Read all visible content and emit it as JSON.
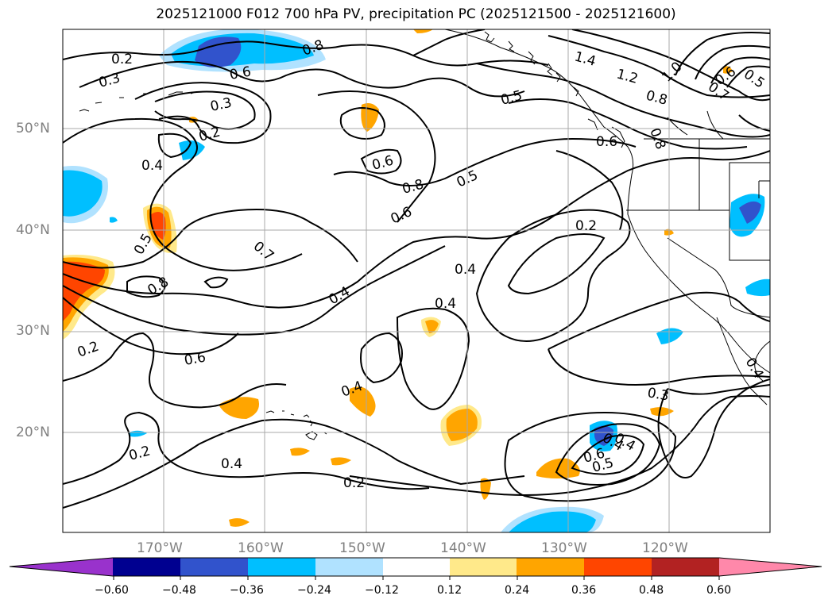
{
  "title": "2025121000 F012 700 hPa PV, precipitation PC (2025121500 - 2025121600)",
  "lat_labels": [
    "50°N",
    "40°N",
    "30°N",
    "20°N"
  ],
  "lon_labels": [
    "170°W",
    "160°W",
    "150°W",
    "140°W",
    "130°W",
    "120°W"
  ],
  "colorbar": {
    "ticks": [
      "−0.60",
      "−0.48",
      "−0.36",
      "−0.24",
      "−0.12",
      "0.12",
      "0.24",
      "0.36",
      "0.48",
      "0.60"
    ],
    "colors": [
      "#9932cc",
      "#000090",
      "#3153cc",
      "#00bfff",
      "#b0e2ff",
      "#ffffff",
      "#ffe98a",
      "#ffa500",
      "#ff4500",
      "#b22222",
      "#ff88aa"
    ]
  },
  "contour_labels": [
    "0.2",
    "0.3",
    "0.6",
    "0.8",
    "0.3",
    "0.2",
    "0.4",
    "1.4",
    "1.2",
    "1.0",
    "0.6",
    "0.5",
    "0.7",
    "0.5",
    "0.8",
    "0.6",
    "0.8",
    "0.6",
    "0.8",
    "0.5",
    "0.6",
    "0.5",
    "0.7",
    "0.8",
    "0.4",
    "0.2",
    "0.4",
    "0.4",
    "0.4",
    "0.6",
    "0.2",
    "0.4",
    "0.3",
    "0.2",
    "0.4",
    "0.2",
    "0.4",
    "0.6",
    "0.5",
    "0.4"
  ]
}
